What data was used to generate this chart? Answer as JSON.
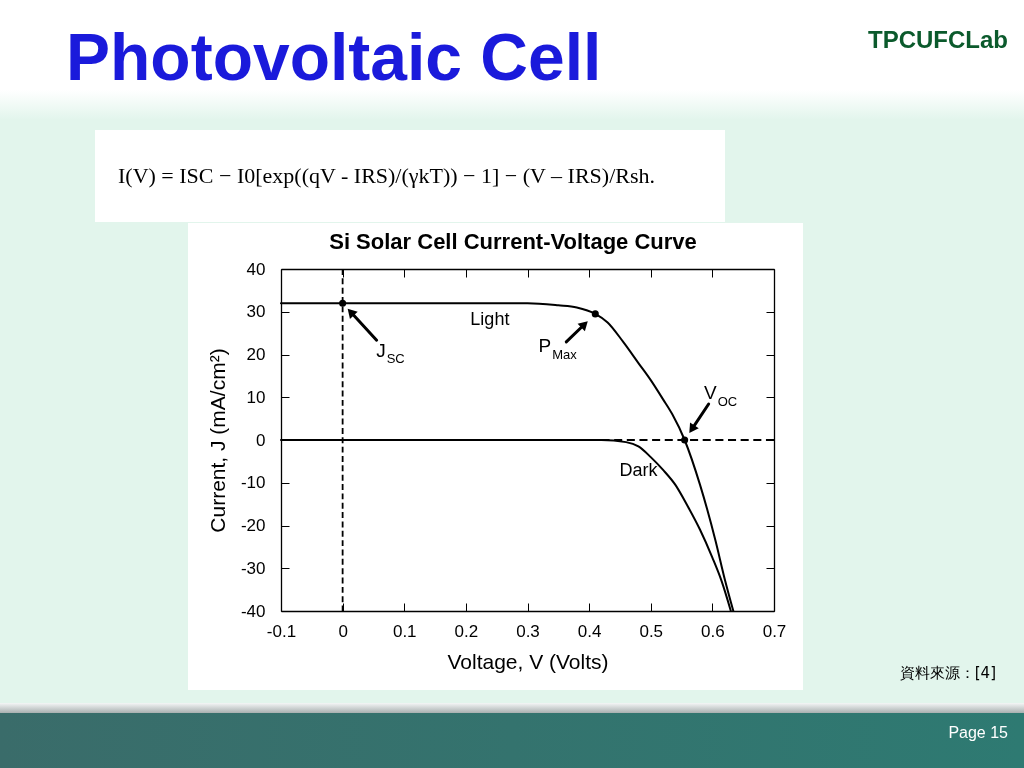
{
  "chart_data": {
    "type": "line",
    "title": "Photovoltaic Cell",
    "subtitle": "Si Solar Cell Current-Voltage Curve",
    "xlabel": "Voltage, V (Volts)",
    "ylabel": "Current, J (mA/cm²)",
    "xlim": [
      -0.1,
      0.7
    ],
    "ylim": [
      -40,
      40
    ],
    "xticks": [
      -0.1,
      0,
      0.1,
      0.2,
      0.3,
      0.4,
      0.5,
      0.6,
      0.7
    ],
    "yticks": [
      -40,
      -30,
      -20,
      -10,
      0,
      10,
      20,
      30,
      40
    ],
    "grid": false,
    "series": [
      {
        "name": "Light",
        "color": "#000000",
        "x": [
          -0.1,
          0,
          0.1,
          0.2,
          0.3,
          0.35,
          0.38,
          0.41,
          0.43,
          0.455,
          0.48,
          0.5,
          0.52,
          0.535,
          0.555,
          0.58,
          0.605,
          0.62,
          0.634
        ],
        "values": [
          32,
          32,
          32,
          32,
          32,
          31.5,
          31,
          29.5,
          27.5,
          23,
          18,
          14,
          9.5,
          6,
          0,
          -10.5,
          -23.5,
          -32.5,
          -40
        ]
      },
      {
        "name": "Dark",
        "color": "#000000",
        "x": [
          -0.1,
          0.1,
          0.3,
          0.42,
          0.46,
          0.48,
          0.5,
          0.52,
          0.54,
          0.56,
          0.58,
          0.6,
          0.615,
          0.63
        ],
        "values": [
          0,
          0,
          0,
          0,
          -0.5,
          -1.5,
          -4,
          -7,
          -10.5,
          -15.5,
          -21,
          -27.5,
          -33,
          -40
        ]
      },
      {
        "type": "scatter",
        "marker": "circle",
        "color": "#000000",
        "x": [
          0,
          0.41,
          0.555
        ],
        "values": [
          32,
          29.5,
          0
        ]
      }
    ],
    "ref_lines": [
      {
        "axis": "x",
        "value": 0,
        "color": "#000000",
        "line_style": "dashed"
      },
      {
        "axis": "y",
        "value": 0,
        "color": "#000000",
        "line_style": "dashed"
      }
    ],
    "annotations": [
      "TPCUFCLab",
      "I(V) = ISC − I0[exp((qV - IRS)/(γkT)) − 1] − (V – IRS)/Rsh.",
      {
        "text": "J$_{SC}$",
        "x": 0,
        "y": 32
      },
      {
        "text": "P$_{Max}$",
        "x": 0.41,
        "y": 29.5
      },
      {
        "text": "V$_{OC}$",
        "x": 0.555,
        "y": 0
      },
      "資料來源：[4]",
      "Page 15"
    ]
  }
}
